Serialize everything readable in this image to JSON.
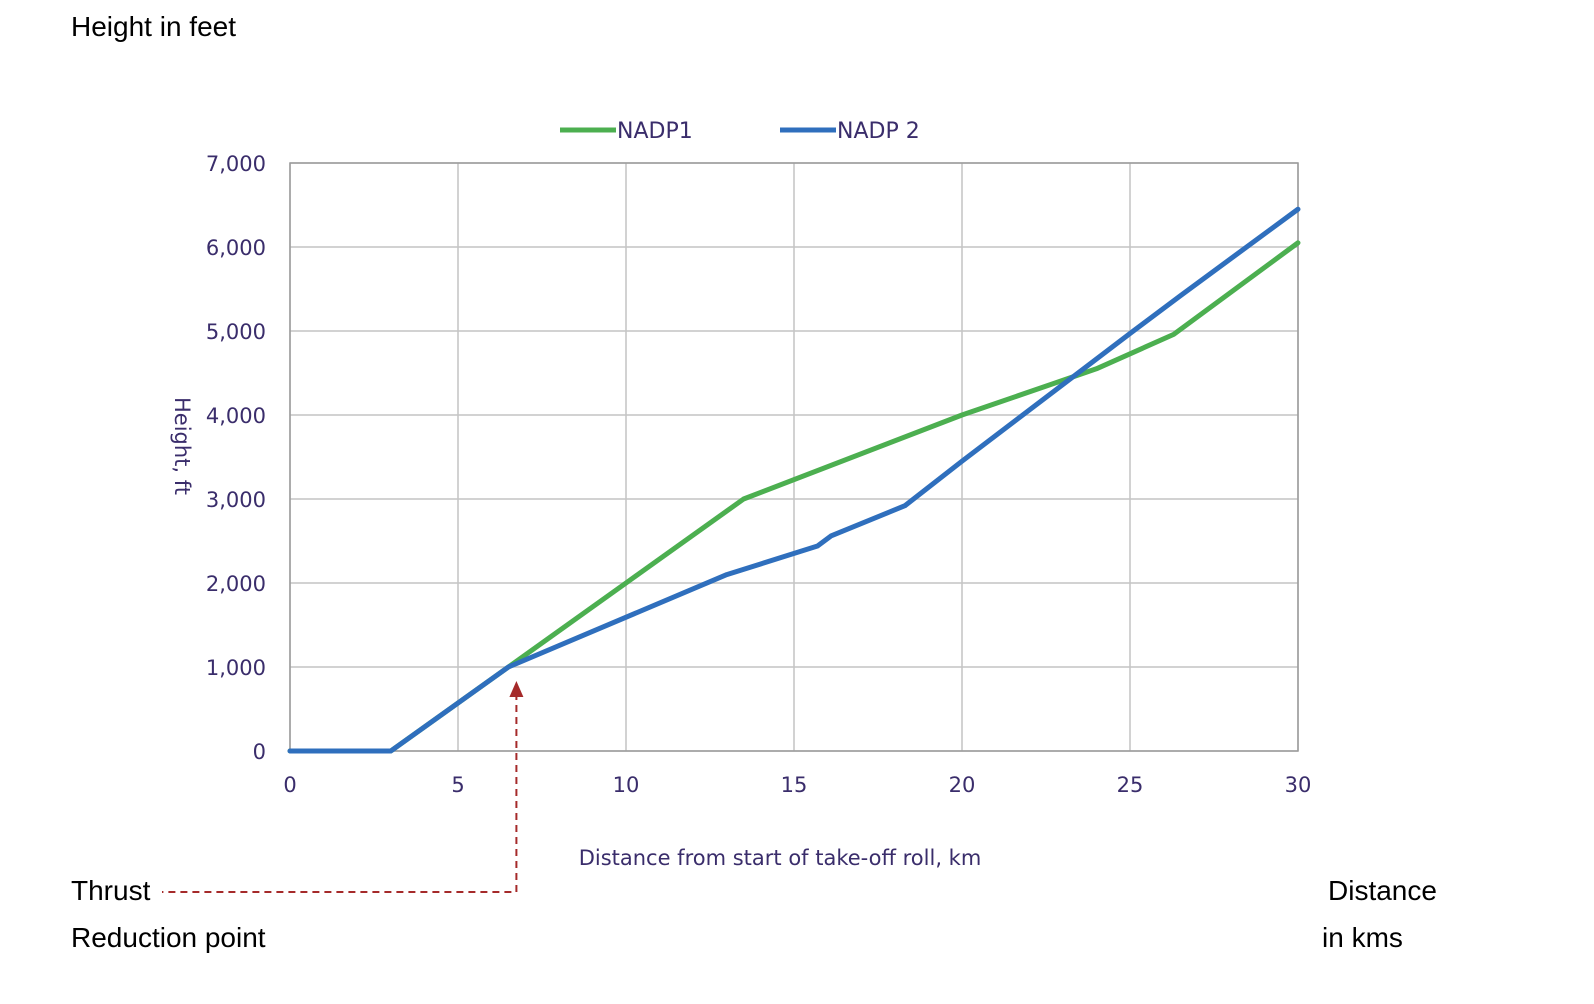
{
  "annotations": {
    "height_title": "Height in feet",
    "thrust_line1": "Thrust",
    "thrust_line2": "Reduction point",
    "distance_line1": "Distance",
    "distance_line2": "in kms"
  },
  "chart_data": {
    "type": "line",
    "xlabel": "Distance from start of take-off roll, km",
    "ylabel": "Height, ft",
    "xlim": [
      0,
      30
    ],
    "ylim": [
      0,
      7000
    ],
    "xticks": [
      0,
      5,
      10,
      15,
      20,
      25,
      30
    ],
    "xtick_labels": [
      "0",
      "5",
      "10",
      "15",
      "20",
      "25",
      "30"
    ],
    "yticks": [
      0,
      1000,
      2000,
      3000,
      4000,
      5000,
      6000,
      7000
    ],
    "ytick_labels": [
      "0",
      "1,000",
      "2,000",
      "3,000",
      "4,000",
      "5,000",
      "6,000",
      "7,000"
    ],
    "grid": true,
    "legend": "top",
    "series": [
      {
        "name": "NADP1",
        "color": "#4caf50",
        "x": [
          0,
          3,
          6.5,
          10,
          13.5,
          20,
          24,
          26.3,
          30
        ],
        "y": [
          0,
          0,
          1000,
          2000,
          3000,
          4000,
          4550,
          4960,
          6050
        ]
      },
      {
        "name": "NADP 2",
        "color": "#2f6fbd",
        "x": [
          0,
          3,
          6.5,
          13,
          15.7,
          16.1,
          18.3,
          20,
          25,
          26.5,
          30
        ],
        "y": [
          0,
          0,
          1000,
          2100,
          2440,
          2560,
          2920,
          3450,
          4970,
          5420,
          6450
        ]
      }
    ],
    "annotation_marker": {
      "x": 6.5,
      "y": 1000,
      "color": "#a52a2a"
    }
  }
}
